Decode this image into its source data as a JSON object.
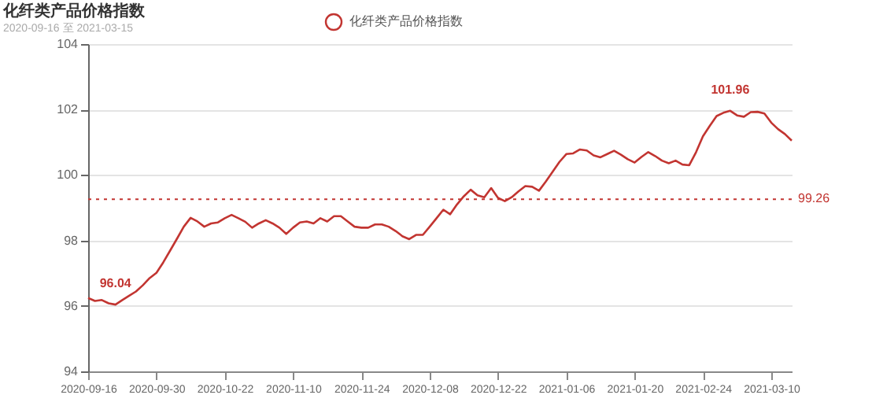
{
  "chart_data": {
    "type": "line",
    "title": "化纤类产品价格指数",
    "subtitle": "2020-09-16 至 2021-03-15",
    "categories": [
      "2020-09-16",
      null,
      null,
      null,
      null,
      null,
      null,
      null,
      null,
      null,
      "2020-09-30",
      null,
      null,
      null,
      null,
      null,
      null,
      null,
      null,
      null,
      "2020-10-22",
      null,
      null,
      null,
      null,
      null,
      null,
      null,
      null,
      null,
      "2020-11-10",
      null,
      null,
      null,
      null,
      null,
      null,
      null,
      null,
      null,
      "2020-11-24",
      null,
      null,
      null,
      null,
      null,
      null,
      null,
      null,
      null,
      "2020-12-08",
      null,
      null,
      null,
      null,
      null,
      null,
      null,
      null,
      null,
      "2020-12-22",
      null,
      null,
      null,
      null,
      null,
      null,
      null,
      null,
      null,
      "2021-01-06",
      null,
      null,
      null,
      null,
      null,
      null,
      null,
      null,
      null,
      "2021-01-20",
      null,
      null,
      null,
      null,
      null,
      null,
      null,
      null,
      null,
      "2021-02-24",
      null,
      null,
      null,
      null,
      null,
      null,
      null,
      null,
      null,
      "2021-03-10",
      null,
      null,
      null
    ],
    "series": [
      {
        "name": "化纤类产品价格指数",
        "color": "#c23531",
        "values": [
          96.24,
          96.15,
          96.18,
          96.08,
          96.04,
          96.18,
          96.31,
          96.44,
          96.63,
          96.85,
          97.01,
          97.33,
          97.69,
          98.05,
          98.42,
          98.69,
          98.58,
          98.42,
          98.52,
          98.55,
          98.68,
          98.78,
          98.68,
          98.57,
          98.39,
          98.52,
          98.62,
          98.52,
          98.39,
          98.2,
          98.39,
          98.55,
          98.58,
          98.52,
          98.68,
          98.58,
          98.74,
          98.74,
          98.58,
          98.42,
          98.39,
          98.39,
          98.49,
          98.49,
          98.42,
          98.29,
          98.13,
          98.04,
          98.17,
          98.17,
          98.42,
          98.68,
          98.94,
          98.8,
          99.1,
          99.35,
          99.55,
          99.38,
          99.32,
          99.6,
          99.3,
          99.2,
          99.32,
          99.5,
          99.66,
          99.64,
          99.52,
          99.8,
          100.1,
          100.4,
          100.64,
          100.66,
          100.78,
          100.75,
          100.6,
          100.54,
          100.64,
          100.74,
          100.62,
          100.48,
          100.38,
          100.55,
          100.7,
          100.58,
          100.44,
          100.36,
          100.44,
          100.32,
          100.3,
          100.7,
          101.18,
          101.5,
          101.8,
          101.9,
          101.96,
          101.82,
          101.78,
          101.92,
          101.93,
          101.88,
          101.6,
          101.4,
          101.25,
          101.05
        ]
      }
    ],
    "ylim": [
      94,
      104
    ],
    "yticks": [
      94,
      96,
      98,
      100,
      102,
      104
    ],
    "grid": "y",
    "legend": "top",
    "ref_lines": [
      {
        "axis": "y",
        "value": 99.26,
        "label": "99.26",
        "color": "#c23531",
        "line_style": "dotted"
      }
    ],
    "annotations": [
      {
        "text": "96.04",
        "y": 96.04
      },
      {
        "text": "101.96",
        "y": 101.96
      }
    ]
  }
}
